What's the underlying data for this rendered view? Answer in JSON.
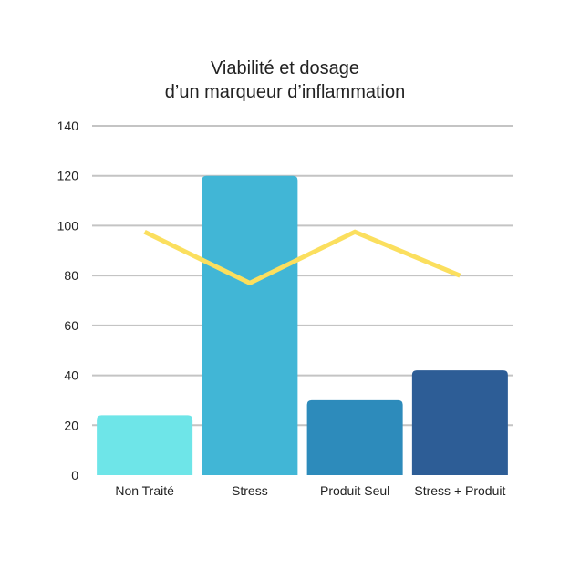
{
  "chart_data": {
    "type": "bar",
    "title_lines": [
      "Viabilité et dosage",
      "d’un marqueur d’inflammation"
    ],
    "xlabel": "",
    "ylabel": "",
    "categories": [
      "Non Traité",
      "Stress",
      "Produit Seul",
      "Stress + Produit"
    ],
    "series": [
      {
        "type": "bar",
        "values": [
          24,
          120,
          30,
          42
        ],
        "colors": [
          "#6ee5e8",
          "#41b6d6",
          "#2d8bbb",
          "#2d5d96"
        ]
      },
      {
        "type": "line",
        "values": [
          97.5,
          77,
          97.5,
          80
        ],
        "color": "#fbdf5e"
      }
    ],
    "ylim": [
      0,
      140
    ],
    "yticks": [
      0,
      20,
      40,
      60,
      80,
      100,
      120,
      140
    ],
    "grid": true,
    "legend": "none"
  }
}
